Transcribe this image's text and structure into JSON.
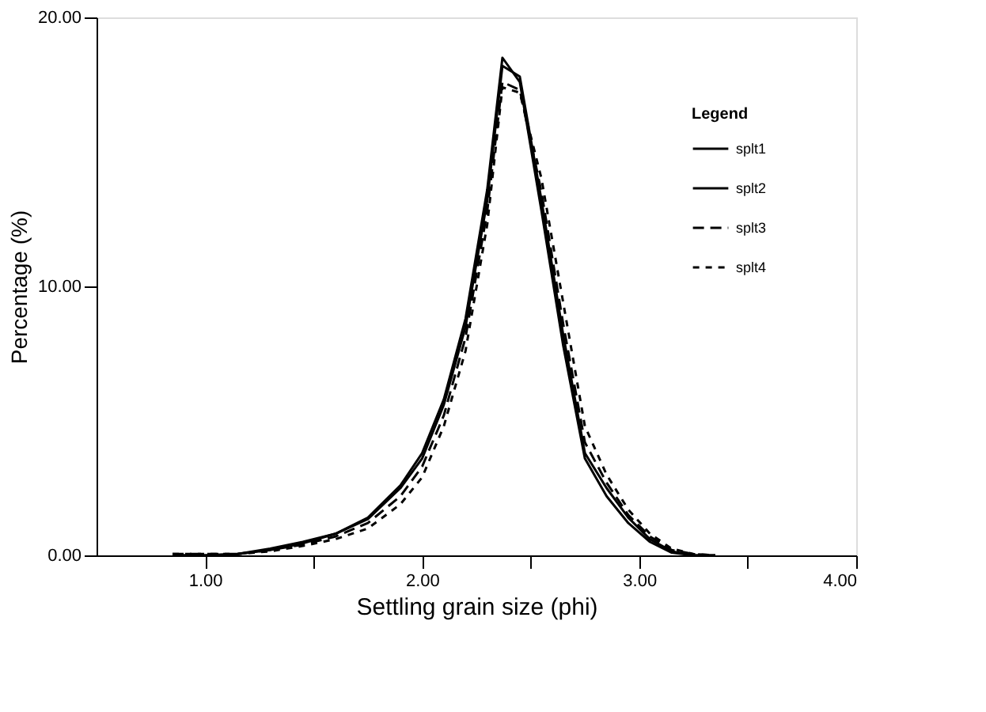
{
  "chart_data": {
    "type": "line",
    "xlabel": "Settling grain size (phi)",
    "ylabel": "Percentage (%)",
    "legend_title": "Legend",
    "x": [
      0.85,
      1.0,
      1.15,
      1.3,
      1.45,
      1.6,
      1.75,
      1.9,
      2.0,
      2.1,
      2.2,
      2.3,
      2.37,
      2.45,
      2.55,
      2.65,
      2.75,
      2.85,
      2.95,
      3.05,
      3.15,
      3.25,
      3.35
    ],
    "series": [
      {
        "name": "splt1",
        "color": "#000000",
        "line_style": "solid",
        "values": [
          0,
          0,
          0.05,
          0.25,
          0.5,
          0.8,
          1.4,
          2.6,
          3.8,
          5.8,
          8.8,
          13.6,
          18.5,
          17.6,
          12.8,
          7.8,
          3.6,
          2.2,
          1.2,
          0.5,
          0.1,
          0,
          0
        ]
      },
      {
        "name": "splt2",
        "color": "#000000",
        "line_style": "solid",
        "values": [
          0,
          0,
          0.05,
          0.2,
          0.45,
          0.8,
          1.35,
          2.5,
          3.6,
          5.6,
          8.5,
          13.2,
          18.2,
          17.8,
          13.2,
          8.2,
          3.8,
          2.5,
          1.4,
          0.6,
          0.15,
          0,
          0
        ]
      },
      {
        "name": "splt3",
        "color": "#000000",
        "line_style": "dashed",
        "values": [
          0.05,
          0.05,
          0.05,
          0.2,
          0.4,
          0.7,
          1.2,
          2.2,
          3.3,
          5.2,
          8.1,
          12.8,
          17.6,
          17.3,
          13.5,
          8.6,
          4.2,
          2.7,
          1.5,
          0.7,
          0.2,
          0.05,
          0
        ]
      },
      {
        "name": "splt4",
        "color": "#000000",
        "line_style": "dotted",
        "values": [
          0.05,
          0.05,
          0.05,
          0.15,
          0.35,
          0.6,
          1.0,
          1.9,
          2.9,
          4.8,
          7.6,
          12.3,
          17.4,
          17.2,
          14.0,
          9.4,
          4.8,
          3.0,
          1.7,
          0.8,
          0.25,
          0.05,
          0
        ]
      }
    ],
    "xlim": [
      0.5,
      4.0
    ],
    "xticks": [
      {
        "value": 1.0,
        "label": "1.00"
      },
      {
        "value": 1.5,
        "label": null
      },
      {
        "value": 2.0,
        "label": "2.00"
      },
      {
        "value": 2.5,
        "label": null
      },
      {
        "value": 3.0,
        "label": "3.00"
      },
      {
        "value": 3.5,
        "label": null
      },
      {
        "value": 4.0,
        "label": "4.00"
      }
    ],
    "ylim": [
      0,
      20
    ],
    "yticks": [
      {
        "value": 0,
        "label": "0.00"
      },
      {
        "value": 10,
        "label": "10.00"
      },
      {
        "value": 20,
        "label": "20.00"
      }
    ],
    "grid": false,
    "legend": "top right"
  }
}
